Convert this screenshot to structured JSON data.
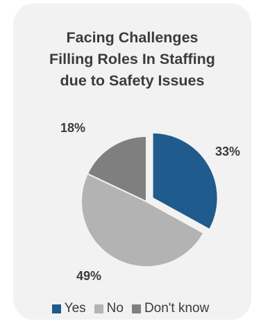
{
  "chart_data": {
    "type": "pie",
    "title": "Facing Challenges\nFilling Roles In Staffing\ndue to Safety Issues",
    "categories": [
      "Yes",
      "No",
      "Don't know"
    ],
    "values": [
      33,
      49,
      18
    ],
    "data_labels": [
      "33%",
      "49%",
      "18%"
    ],
    "colors": [
      "#1f5b8c",
      "#b3b3b3",
      "#7f7f7f"
    ],
    "exploded": "Yes",
    "legend_position": "bottom"
  }
}
